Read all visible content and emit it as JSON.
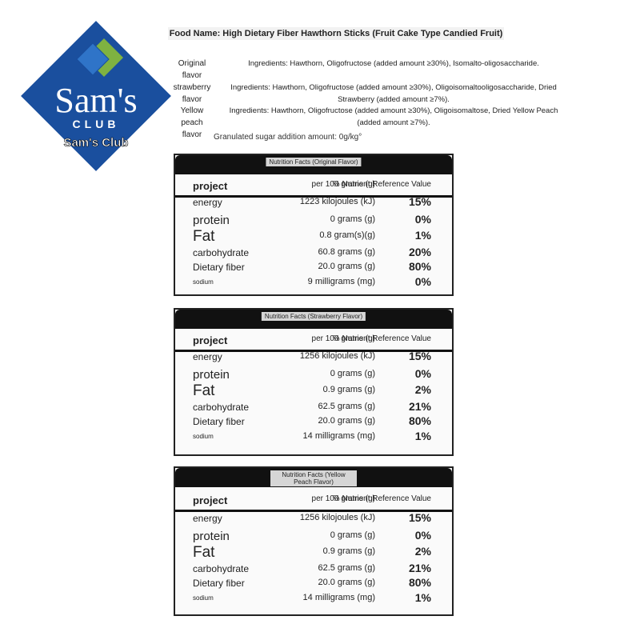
{
  "logo": {
    "brand": "Sam's",
    "sub": "CLUB",
    "caption": "Sam's Club"
  },
  "food_name": "Food Name: High Dietary Fiber Hawthorn Sticks (Fruit Cake Type Candied Fruit)",
  "flavors": [
    {
      "label": "Original flavor",
      "ingredients": "Ingredients: Hawthorn, Oligofructose (added amount ≥30%), Isomalto-oligosaccharide."
    },
    {
      "label": "strawberry flavor",
      "ingredients": "Ingredients: Hawthorn, Oligofructose (added amount ≥30%), Oligoisomaltooligosaccharide, Dried Strawberry (added amount ≥7%)."
    },
    {
      "label": "Yellow peach flavor",
      "ingredients": "Ingredients: Hawthorn, Oligofructose (added amount ≥30%), Oligoisomaltose, Dried Yellow Peach (added amount ≥7%)."
    }
  ],
  "sugar_note": "Granulated sugar addition amount: 0g/kg°",
  "panels": [
    {
      "title": "Nutrition Facts (Original Flavor)",
      "header": [
        "project",
        "per 100 grams (g)",
        "% Nutrient Reference Value"
      ],
      "rows": [
        [
          "energy",
          "1223 kilojoules (kJ)",
          "15%"
        ],
        [
          "protein",
          "0 grams (g)",
          "0%"
        ],
        [
          "Fat",
          "0.8 gram(s)(g)",
          "1%"
        ],
        [
          "carbohydrate",
          "60.8 grams (g)",
          "20%"
        ],
        [
          "Dietary fiber",
          "20.0 grams (g)",
          "80%"
        ],
        [
          "sodium",
          "9 milligrams (mg)",
          "0%"
        ]
      ]
    },
    {
      "title": "Nutrition Facts (Strawberry Flavor)",
      "header": [
        "project",
        "per 100 grams (g)",
        "% Nutrient Reference Value"
      ],
      "rows": [
        [
          "energy",
          "1256 kilojoules (kJ)",
          "15%"
        ],
        [
          "protein",
          "0 grams (g)",
          "0%"
        ],
        [
          "Fat",
          "0.9 grams (g)",
          "2%"
        ],
        [
          "carbohydrate",
          "62.5 grams (g)",
          "21%"
        ],
        [
          "Dietary fiber",
          "20.0 grams (g)",
          "80%"
        ],
        [
          "sodium",
          "14 milligrams (mg)",
          "1%"
        ]
      ]
    },
    {
      "title": "Nutrition Facts (Yellow Peach Flavor)",
      "header": [
        "project",
        "per 100 grams (g)",
        "% Nutrient Reference Value"
      ],
      "rows": [
        [
          "energy",
          "1256 kilojoules (kJ)",
          "15%"
        ],
        [
          "protein",
          "0 grams (g)",
          "0%"
        ],
        [
          "Fat",
          "0.9 grams (g)",
          "2%"
        ],
        [
          "carbohydrate",
          "62.5 grams (g)",
          "21%"
        ],
        [
          "Dietary fiber",
          "20.0 grams (g)",
          "80%"
        ],
        [
          "sodium",
          "14 milligrams (mg)",
          "1%"
        ]
      ]
    }
  ]
}
